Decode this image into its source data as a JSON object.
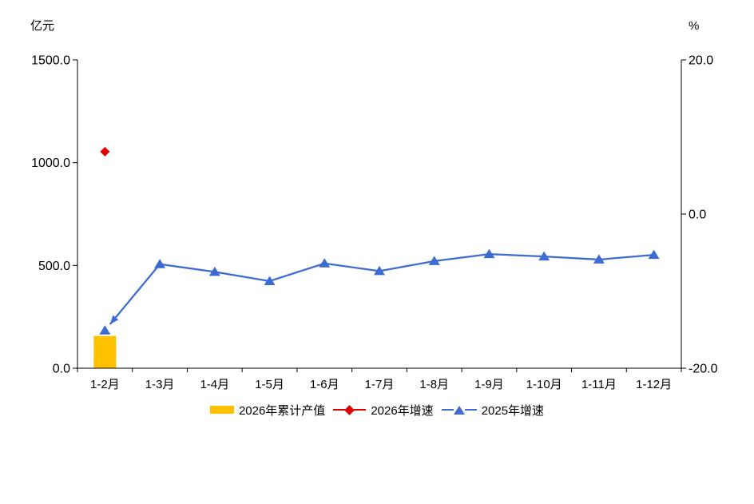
{
  "chart_data": {
    "type": "combo",
    "categories": [
      "1-2月",
      "1-3月",
      "1-4月",
      "1-5月",
      "1-6月",
      "1-7月",
      "1-8月",
      "1-9月",
      "1-10月",
      "1-11月",
      "1-12月"
    ],
    "series": [
      {
        "name": "2026年累计产值",
        "type": "bar",
        "axis": "left",
        "color": "#FFC000",
        "values": [
          157,
          null,
          null,
          null,
          null,
          null,
          null,
          null,
          null,
          null,
          null
        ]
      },
      {
        "name": "2026年增速",
        "type": "scatter",
        "marker": "diamond",
        "axis": "right",
        "color": "#E00000",
        "values": [
          8.1,
          null,
          null,
          null,
          null,
          null,
          null,
          null,
          null,
          null,
          null
        ]
      },
      {
        "name": "2025年增速",
        "type": "line",
        "marker": "triangle-up",
        "axis": "right",
        "color": "#3C6BD2",
        "arrow_annotation_at_first_point": true,
        "values": [
          -15.1,
          -6.5,
          -7.5,
          -8.7,
          -6.4,
          -7.4,
          -6.1,
          -5.2,
          -5.5,
          -5.9,
          -5.3
        ]
      }
    ],
    "left_axis": {
      "unit": "亿元",
      "min": 0,
      "max": 1500,
      "ticks": [
        {
          "v": 0,
          "label": "0.0"
        },
        {
          "v": 500,
          "label": "500.0"
        },
        {
          "v": 1000,
          "label": "1000.0"
        },
        {
          "v": 1500,
          "label": "1500.0"
        }
      ]
    },
    "right_axis": {
      "unit": "%",
      "min": -20,
      "max": 20,
      "ticks": [
        {
          "v": -20,
          "label": "-20.0"
        },
        {
          "v": 0,
          "label": "0.0"
        },
        {
          "v": 20,
          "label": "20.0"
        }
      ]
    },
    "grid": false,
    "legend_position": "bottom"
  },
  "legend": {
    "items": [
      {
        "label": "2026年累计产值",
        "marker": "bar-swatch",
        "color": "#FFC000"
      },
      {
        "label": "2026年增速",
        "marker": "diamond-on-line",
        "color": "#E00000"
      },
      {
        "label": "2025年增速",
        "marker": "triangle-on-line",
        "color": "#3C6BD2"
      }
    ]
  }
}
